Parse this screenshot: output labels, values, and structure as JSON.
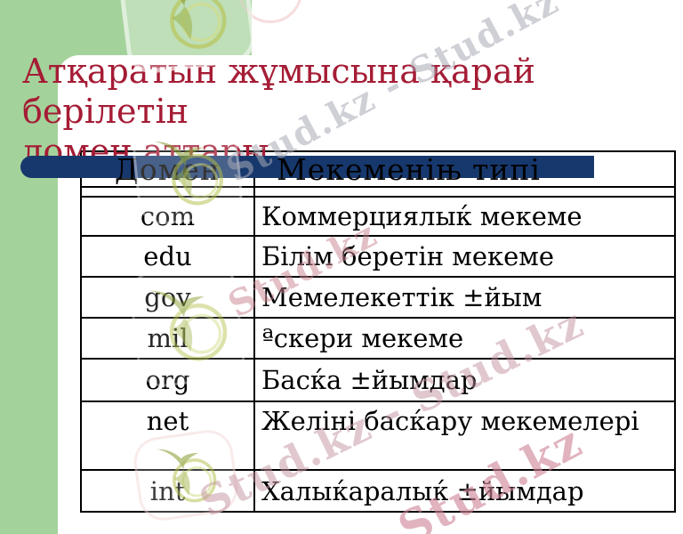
{
  "title": {
    "line1": "Атқаратын жұмысына қарай берілетін",
    "line2": "домен аттары"
  },
  "table": {
    "headers": [
      "Домен",
      "Мекеменіњ типі"
    ],
    "rows": [
      {
        "domain": "com",
        "type": "Коммерциялыќ мекеме"
      },
      {
        "domain": "edu",
        "type": "Білім беретін мекеме"
      },
      {
        "domain": "gov",
        "type": "Мемелекеттік ±йым"
      },
      {
        "domain": "mil",
        "type": "ªскери мекеме"
      },
      {
        "domain": "org",
        "type": "Басќа ±йымдар"
      },
      {
        "domain": "net",
        "type": "Желіні басќару мекемелері"
      },
      {
        "domain": "int",
        "type": "Халыќаралыќ ±йымдар"
      }
    ]
  },
  "watermarks": {
    "short": "Stud.kz",
    "long": "Stud.kz - Stud.kz"
  },
  "colors": {
    "accent_green": "#a4d29b",
    "header_bar_navy": "#17386d",
    "title_red": "#a51c35",
    "table_border": "#000000"
  }
}
